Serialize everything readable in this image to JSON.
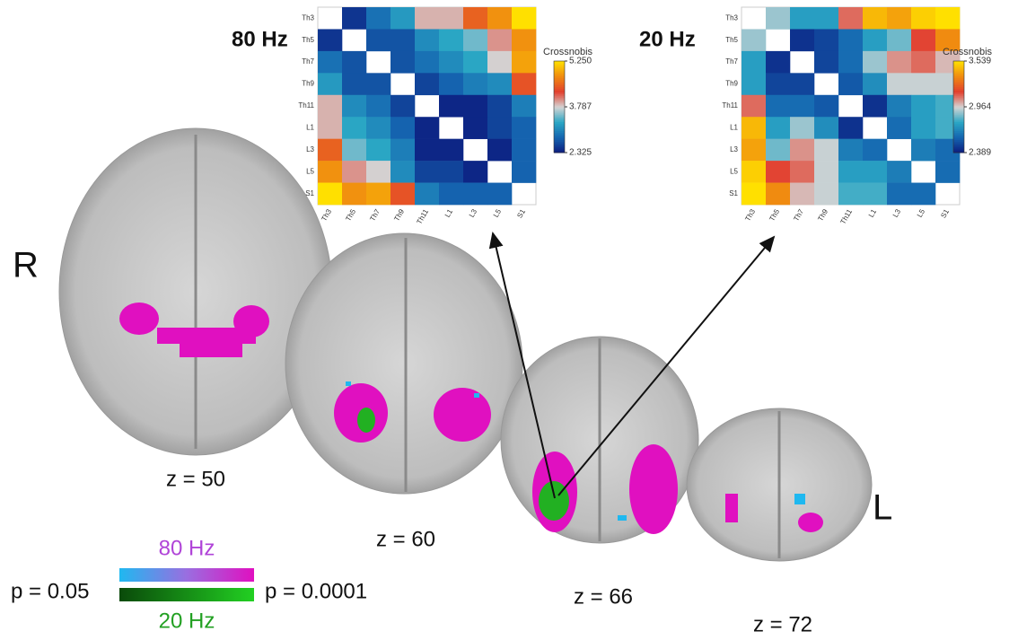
{
  "chart_data": [
    {
      "type": "heatmap",
      "title": "80 Hz",
      "colorbar_title": "Crossnobis",
      "x": [
        "Th3",
        "Th5",
        "Th7",
        "Th9",
        "Th11",
        "L1",
        "L3",
        "L5",
        "S1"
      ],
      "y": [
        "Th3",
        "Th5",
        "Th7",
        "Th9",
        "Th11",
        "L1",
        "L3",
        "L5",
        "S1"
      ],
      "z": [
        [
          null,
          2.5,
          2.9,
          3.2,
          3.9,
          3.9,
          4.5,
          4.8,
          5.25
        ],
        [
          2.5,
          null,
          2.7,
          2.7,
          3.1,
          3.3,
          3.5,
          4.0,
          4.8
        ],
        [
          2.9,
          2.7,
          null,
          2.7,
          2.9,
          3.1,
          3.3,
          3.8,
          4.9
        ],
        [
          3.2,
          2.7,
          2.7,
          null,
          2.6,
          2.8,
          3.0,
          3.1,
          4.4
        ],
        [
          3.9,
          3.1,
          2.9,
          2.6,
          null,
          2.4,
          2.4,
          2.6,
          3.0
        ],
        [
          3.9,
          3.3,
          3.1,
          2.8,
          2.4,
          null,
          2.4,
          2.6,
          2.8
        ],
        [
          4.5,
          3.5,
          3.3,
          3.0,
          2.4,
          2.4,
          null,
          2.4,
          2.8
        ],
        [
          4.8,
          4.0,
          3.8,
          3.1,
          2.6,
          2.6,
          2.4,
          null,
          2.8
        ],
        [
          5.25,
          4.8,
          4.9,
          4.4,
          3.0,
          2.8,
          2.8,
          2.8,
          null
        ]
      ],
      "zlim": [
        2.325,
        5.25
      ],
      "zticks": [
        2.325,
        3.787,
        {
          "value": 5.25,
          "label": "5.250"
        }
      ],
      "colormap": [
        "#0b1a7e",
        "#1565b0",
        "#2aa6c4",
        "#d4d4d4",
        "#e2402e",
        "#f08a10",
        "#ffe000"
      ]
    },
    {
      "type": "heatmap",
      "title": "20 Hz",
      "colorbar_title": "Crossnobis",
      "x": [
        "Th3",
        "Th5",
        "Th7",
        "Th9",
        "Th11",
        "L1",
        "L3",
        "L5",
        "S1"
      ],
      "y": [
        "Th3",
        "Th5",
        "Th7",
        "Th9",
        "Th11",
        "L1",
        "L3",
        "L5",
        "S1"
      ],
      "z": [
        [
          null,
          2.9,
          2.75,
          2.75,
          3.1,
          3.45,
          3.4,
          3.5,
          3.539
        ],
        [
          2.9,
          null,
          2.45,
          2.5,
          2.6,
          2.75,
          2.85,
          3.15,
          3.35
        ],
        [
          2.75,
          2.45,
          null,
          2.5,
          2.6,
          2.9,
          3.05,
          3.1,
          3.0
        ],
        [
          2.75,
          2.5,
          2.5,
          null,
          2.55,
          2.7,
          2.95,
          2.95,
          2.95
        ],
        [
          3.1,
          2.6,
          2.6,
          2.55,
          null,
          2.45,
          2.65,
          2.75,
          2.8
        ],
        [
          3.45,
          2.75,
          2.9,
          2.7,
          2.45,
          null,
          2.6,
          2.75,
          2.8
        ],
        [
          3.4,
          2.85,
          3.05,
          2.95,
          2.65,
          2.6,
          null,
          2.65,
          2.6
        ],
        [
          3.5,
          3.15,
          3.1,
          2.95,
          2.75,
          2.75,
          2.65,
          null,
          2.6
        ],
        [
          3.539,
          3.35,
          3.0,
          2.95,
          2.8,
          2.8,
          2.6,
          2.6,
          null
        ]
      ],
      "zlim": [
        2.389,
        3.539
      ],
      "zticks": [
        2.389,
        2.964,
        3.539
      ],
      "colormap": [
        "#0b1a7e",
        "#1565b0",
        "#2aa6c4",
        "#d4d4d4",
        "#e2402e",
        "#f08a10",
        "#ffe000"
      ]
    }
  ],
  "figure": {
    "right_label": "R",
    "left_label": "L",
    "slices": [
      "z = 50",
      "z = 60",
      "z = 66",
      "z = 72"
    ],
    "legend": {
      "top": "80 Hz",
      "bottom": "20 Hz",
      "low": "p = 0.05",
      "high": "p = 0.0001"
    }
  }
}
